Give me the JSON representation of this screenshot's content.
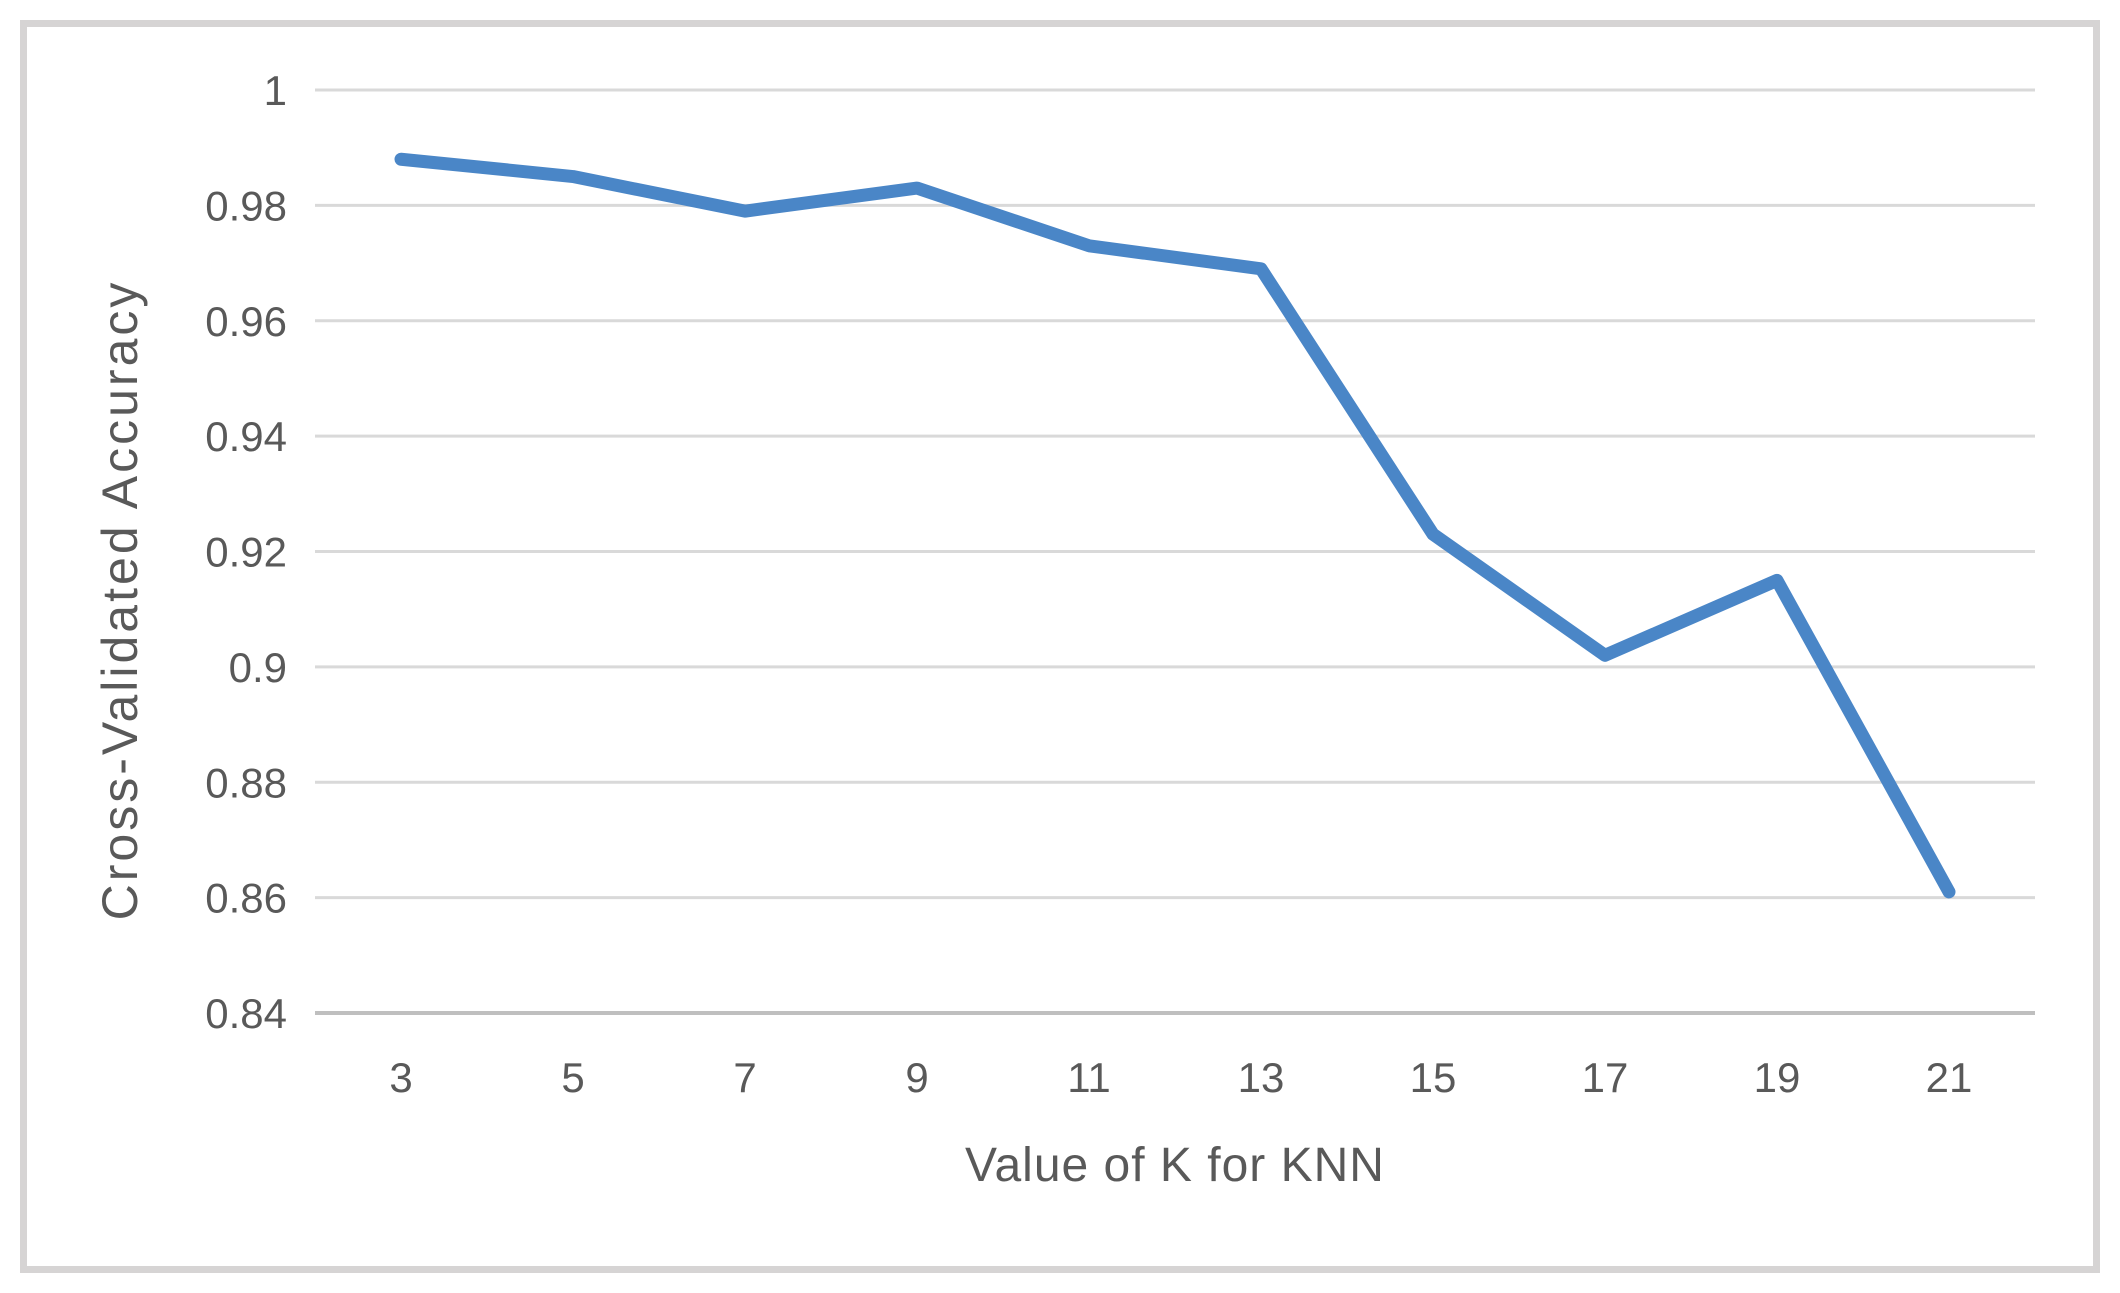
{
  "chart_data": {
    "type": "line",
    "title": "",
    "xlabel": "Value of K for KNN",
    "ylabel": "Cross-Validated Accuracy",
    "x": [
      3,
      5,
      7,
      9,
      11,
      13,
      15,
      17,
      19,
      21
    ],
    "values": [
      0.988,
      0.985,
      0.979,
      0.983,
      0.973,
      0.969,
      0.923,
      0.902,
      0.915,
      0.861
    ],
    "series_name": "Cross-Validated Accuracy",
    "xtick_labels": [
      "3",
      "5",
      "7",
      "9",
      "11",
      "13",
      "15",
      "17",
      "19",
      "21"
    ],
    "ytick_values": [
      1,
      0.98,
      0.96,
      0.94,
      0.92,
      0.9,
      0.88,
      0.86,
      0.84
    ],
    "ytick_labels": [
      "1",
      "0.98",
      "0.96",
      "0.94",
      "0.92",
      "0.9",
      "0.88",
      "0.86",
      "0.84"
    ],
    "ylim": [
      0.84,
      1.0
    ],
    "xlim_categories": 10,
    "grid": true,
    "legend": false,
    "colors": {
      "line": "#4a86c7",
      "gridline": "#d9d9d9",
      "axis_line": "#bfbfbf",
      "text": "#595959",
      "border": "#d6d4d4",
      "background": "#ffffff"
    }
  }
}
